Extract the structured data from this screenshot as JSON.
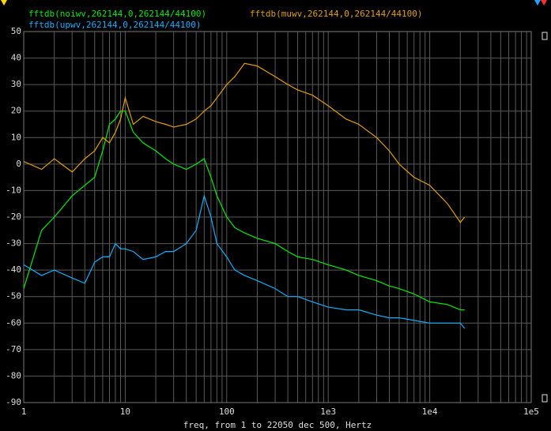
{
  "chart_data": {
    "type": "line",
    "xlabel": "freq, from 1 to 22050 dec 500, Hertz",
    "log_x": true,
    "grid": true,
    "xlim": [
      1,
      100000
    ],
    "xticks": [
      1,
      10,
      100,
      {
        "value": 1000,
        "label": "1e3"
      },
      {
        "value": 10000,
        "label": "1e4"
      },
      {
        "value": 100000,
        "label": "1e5"
      }
    ],
    "ylim": [
      -90,
      50
    ],
    "yticks": [
      50,
      40,
      30,
      20,
      10,
      0,
      -10,
      -20,
      -30,
      -40,
      -50,
      -60,
      -70,
      -80,
      -90
    ],
    "x": [
      1,
      1.5,
      2,
      3,
      4,
      5,
      6,
      7,
      8,
      9,
      10,
      12,
      15,
      20,
      25,
      30,
      40,
      50,
      60,
      70,
      80,
      100,
      120,
      150,
      200,
      300,
      400,
      500,
      700,
      1000,
      1500,
      2000,
      3000,
      4000,
      5000,
      7000,
      10000,
      15000,
      20000,
      22050
    ],
    "series": [
      {
        "name": "fftdb(noiwv,262144,0,262144/44100)",
        "color": "#00ee00",
        "values": [
          -47,
          -25,
          -20,
          -12,
          -8,
          -5,
          5,
          15,
          17,
          20,
          20,
          12,
          8,
          5,
          2,
          0,
          -2,
          0,
          2,
          -5,
          -12,
          -20,
          -24,
          -26,
          -28,
          -30,
          -33,
          -35,
          -36,
          -38,
          -40,
          -42,
          -44,
          -46,
          -47,
          -49,
          -52,
          -53,
          -55,
          -55
        ]
      },
      {
        "name": "fftdb(muwv,262144,0,262144/44100)",
        "color": "#e0a000",
        "values": [
          1,
          -2,
          2,
          -3,
          2,
          5,
          10,
          8,
          12,
          17,
          25,
          15,
          18,
          16,
          15,
          14,
          15,
          17,
          20,
          22,
          25,
          30,
          33,
          38,
          37,
          33,
          30,
          28,
          26,
          22,
          17,
          15,
          10,
          5,
          0,
          -5,
          -8,
          -15,
          -22,
          -20
        ]
      },
      {
        "name": "fftdb(upwv,262144,0,262144/44100)",
        "color": "#10b0ff",
        "values": [
          -38,
          -42,
          -40,
          -43,
          -45,
          -37,
          -35,
          -35,
          -30,
          -32,
          -32,
          -33,
          -36,
          -35,
          -33,
          -33,
          -30,
          -25,
          -12,
          -20,
          -30,
          -35,
          -40,
          -42,
          -44,
          -47,
          -50,
          -50,
          -52,
          -54,
          -55,
          -55,
          -57,
          -58,
          -58,
          -59,
          -60,
          -60,
          -60,
          -62
        ]
      }
    ]
  }
}
